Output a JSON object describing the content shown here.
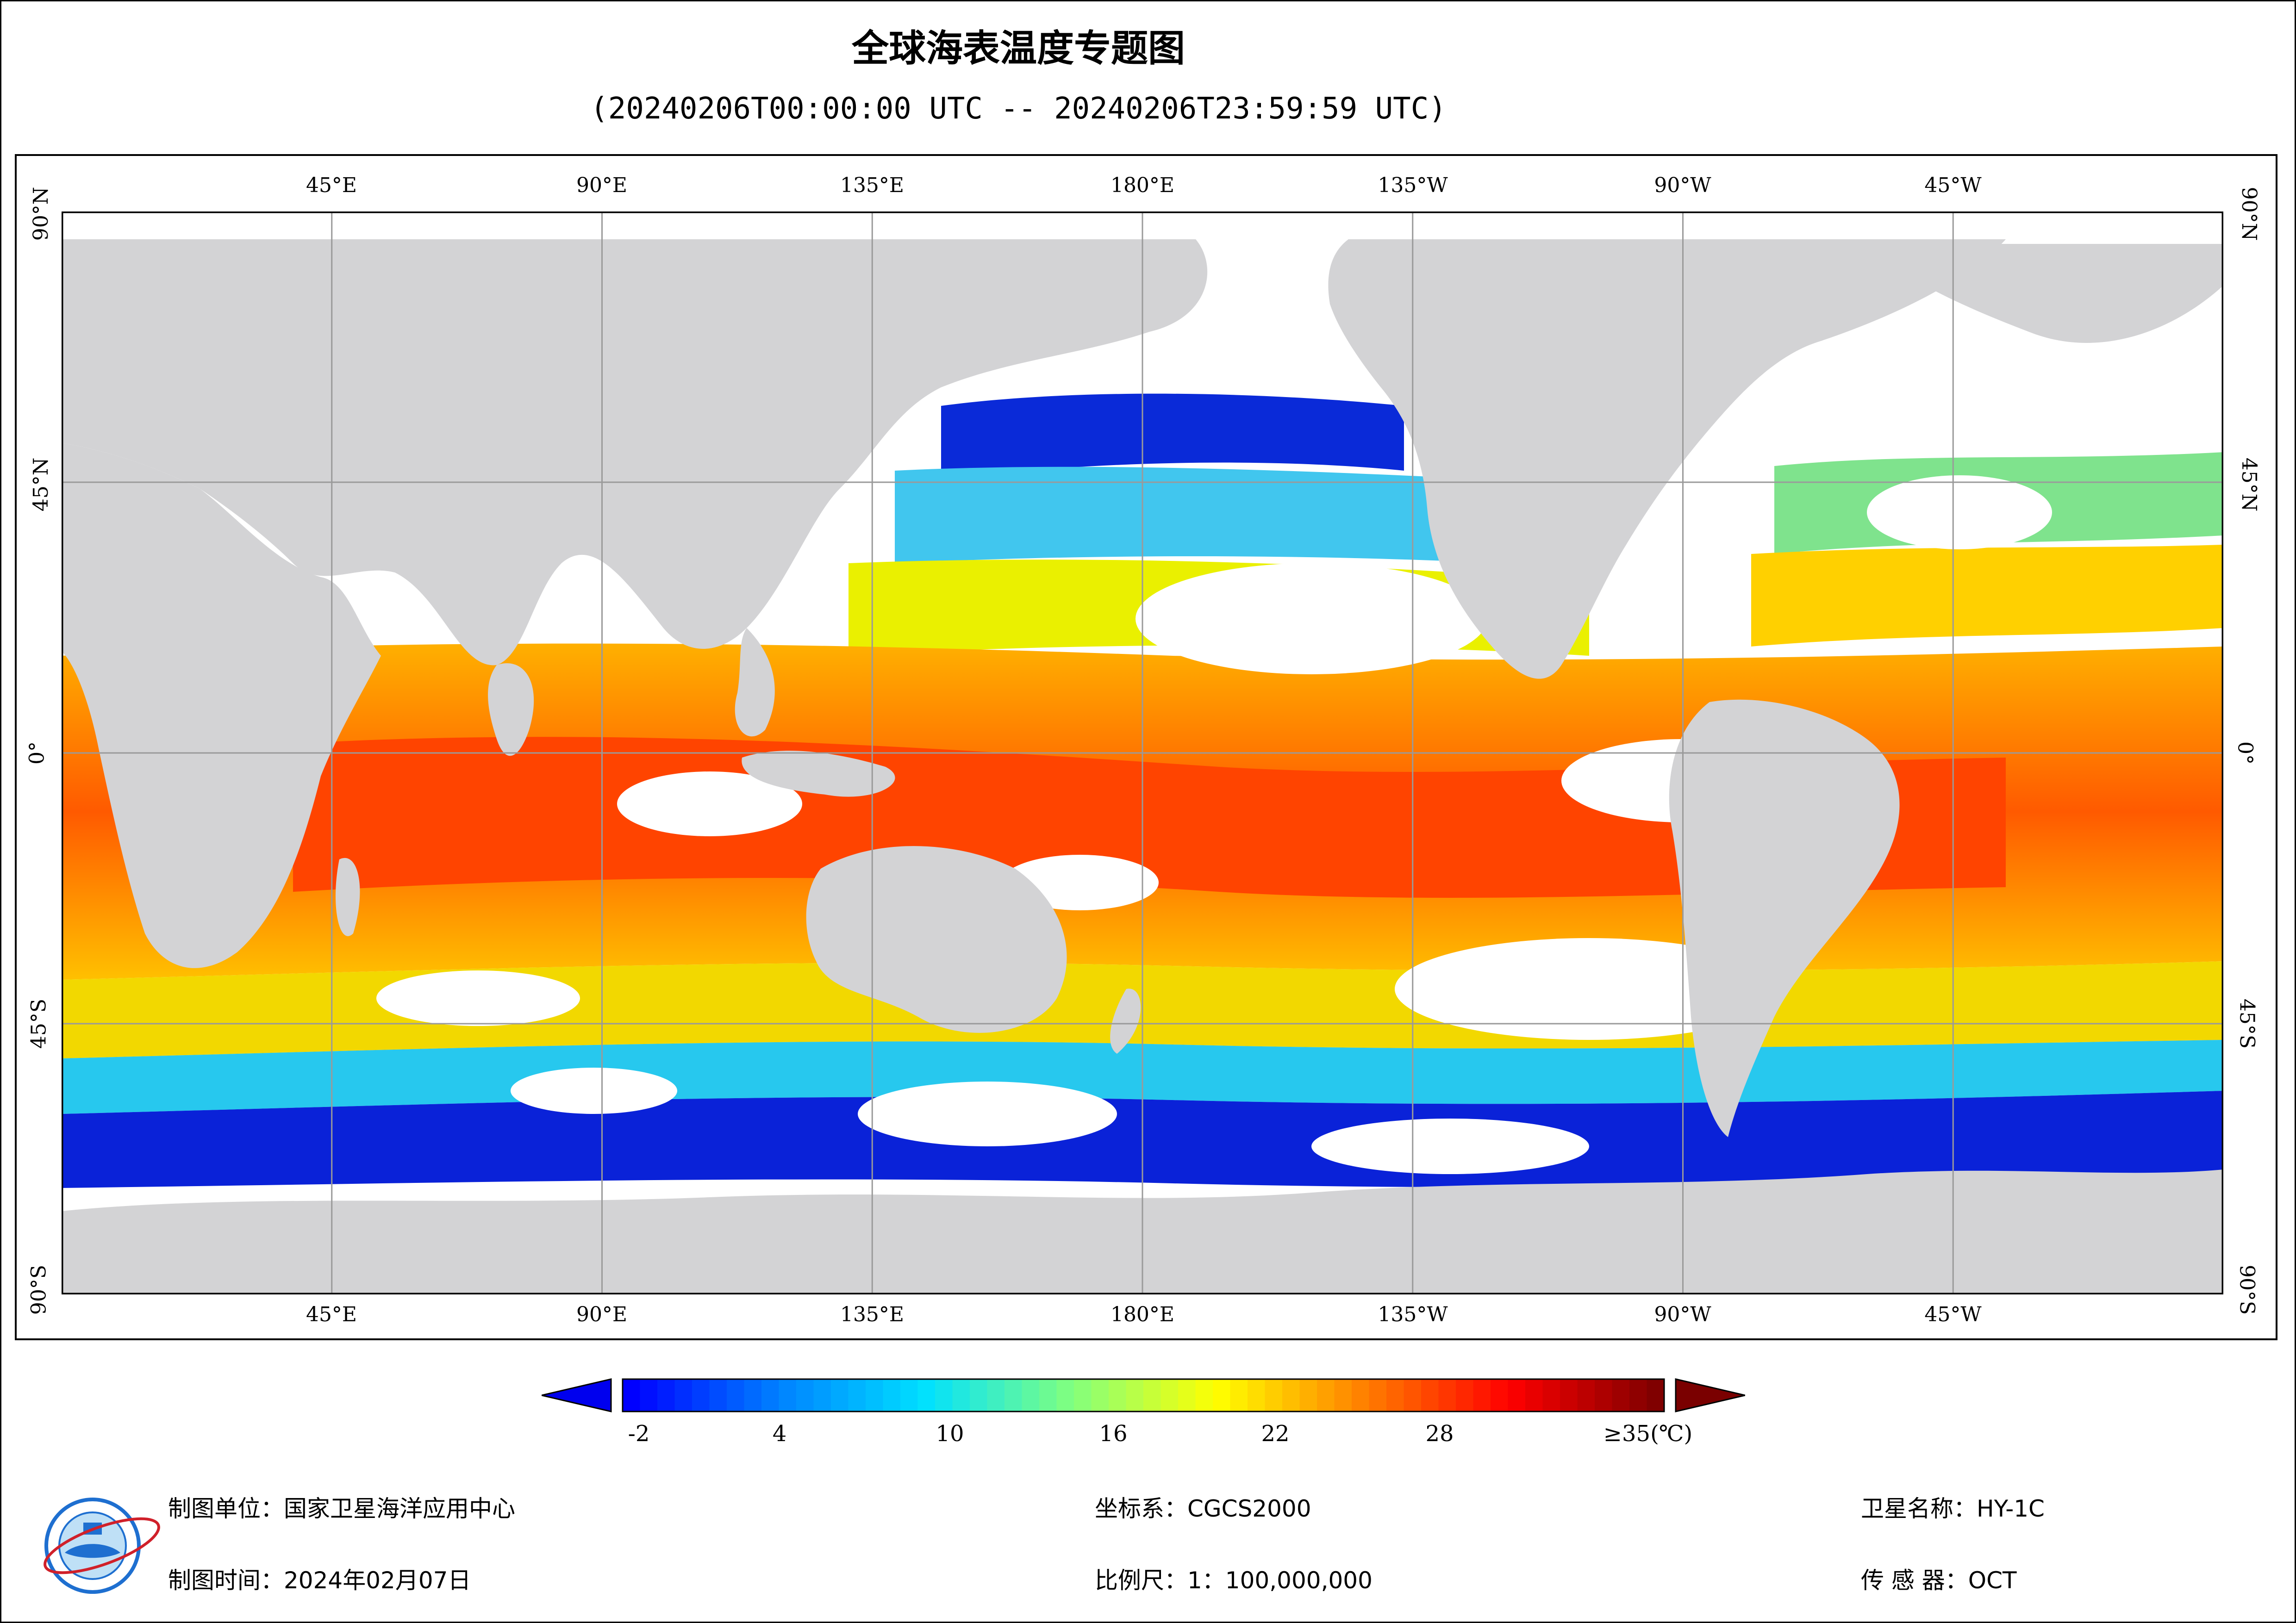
{
  "title": "全球海表温度专题图",
  "subtitle": "(20240206T00:00:00 UTC -- 20240206T23:59:59 UTC)",
  "map": {
    "lon_labels_top": [
      "45°E",
      "90°E",
      "135°E",
      "180°E",
      "135°W",
      "90°W",
      "45°W"
    ],
    "lon_labels_bottom": [
      "45°E",
      "90°E",
      "135°E",
      "180°E",
      "135°W",
      "90°W",
      "45°W"
    ],
    "lat_labels_left": [
      "90°N",
      "45°N",
      "0°",
      "45°S",
      "90°S"
    ],
    "lat_labels_right": [
      "90°N",
      "45°N",
      "0°",
      "45°S",
      "90°S"
    ],
    "colors": {
      "land": "#d3d3d5",
      "no_data": "#ffffff",
      "grid": "#9a9a9a"
    }
  },
  "colorbar": {
    "tick_labels": [
      "-2",
      "4",
      "10",
      "16",
      "22",
      "28",
      "≥35(℃)"
    ],
    "tick_values": [
      -2,
      4,
      10,
      16,
      22,
      28,
      35
    ],
    "min": -2,
    "max": 35,
    "colors": [
      "#0000ff",
      "#0080ff",
      "#00e0ff",
      "#80ff80",
      "#ffff00",
      "#ff8000",
      "#ff0000",
      "#800000"
    ]
  },
  "footer": {
    "org": "制图单位：国家卫星海洋应用中心",
    "date": "制图时间：2024年02月07日",
    "crs": "坐标系：CGCS2000",
    "scale": "比例尺：1：100,000,000",
    "satellite": "卫星名称：HY-1C",
    "sensor": "传 感 器：OCT"
  },
  "logo_icon": "nsoas-logo-icon"
}
